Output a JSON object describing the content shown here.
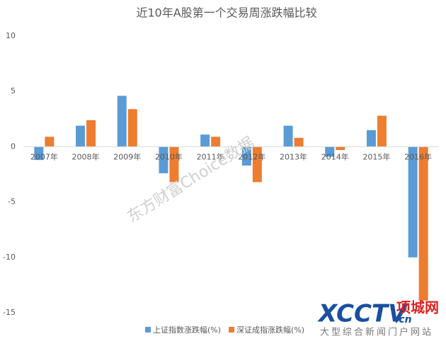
{
  "chart_data": {
    "type": "bar",
    "title": "近10年A股第一个交易周涨跌幅比较",
    "categories": [
      "2007年",
      "2008年",
      "2009年",
      "2010年",
      "2011年",
      "2012年",
      "2013年",
      "2014年",
      "2015年",
      "2016年"
    ],
    "series": [
      {
        "name": "上证指数涨跌幅(%)",
        "color": "#5b9bd5",
        "values": [
          -1.2,
          1.9,
          4.6,
          -2.4,
          1.1,
          -1.7,
          1.9,
          -0.9,
          1.5,
          -10.0
        ]
      },
      {
        "name": "深证成指涨跌幅(%)",
        "color": "#ed7d31",
        "values": [
          0.9,
          2.4,
          3.4,
          -3.2,
          0.9,
          -3.2,
          0.8,
          -0.3,
          2.8,
          -13.9
        ]
      }
    ],
    "ylim": [
      -15,
      10
    ],
    "yticks": [
      -15,
      -10,
      -5,
      0,
      5,
      10
    ],
    "grid": false,
    "legend": "bottom",
    "watermarks": [
      "东方财富Choice数据",
      "XCCTV",
      ".cn",
      "项城网",
      "大型综合新闻门户网站"
    ]
  }
}
